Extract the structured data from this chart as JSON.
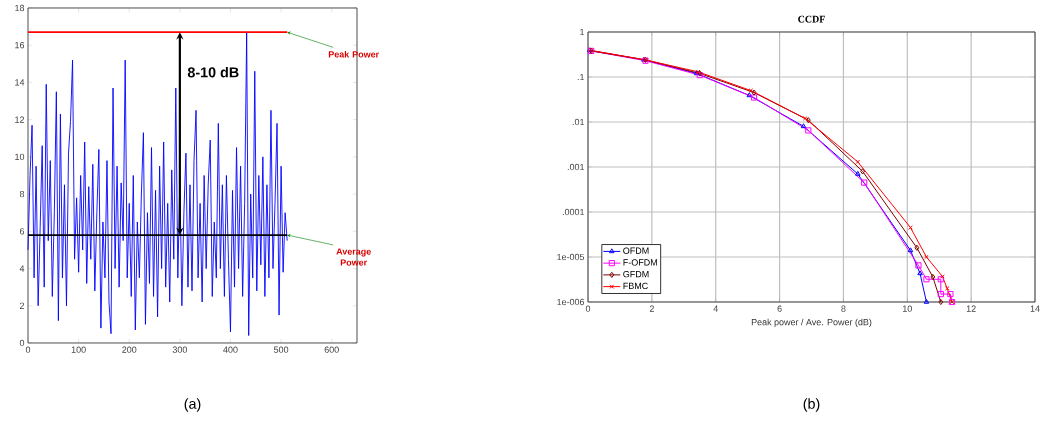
{
  "chart_data": [
    {
      "type": "line",
      "xlim": [
        0,
        650
      ],
      "ylim": [
        0,
        18
      ],
      "xticks": [
        0,
        100,
        200,
        300,
        400,
        500,
        600
      ],
      "yticks": [
        0,
        2,
        4,
        6,
        8,
        10,
        12,
        14,
        16,
        18
      ],
      "series": [
        {
          "color": "#0000ff",
          "x": [
            0,
            4,
            8,
            12,
            16,
            20,
            24,
            28,
            32,
            36,
            40,
            44,
            48,
            52,
            56,
            60,
            64,
            68,
            72,
            76,
            80,
            84,
            88,
            92,
            96,
            100,
            104,
            108,
            112,
            116,
            120,
            124,
            128,
            132,
            136,
            140,
            144,
            148,
            152,
            156,
            160,
            164,
            168,
            172,
            176,
            180,
            184,
            188,
            192,
            196,
            200,
            204,
            208,
            212,
            216,
            220,
            224,
            228,
            232,
            236,
            240,
            244,
            248,
            252,
            256,
            260,
            264,
            268,
            272,
            276,
            280,
            284,
            288,
            292,
            296,
            300,
            304,
            308,
            312,
            316,
            320,
            324,
            328,
            332,
            336,
            340,
            344,
            348,
            352,
            356,
            360,
            364,
            368,
            372,
            376,
            380,
            384,
            388,
            392,
            396,
            400,
            404,
            408,
            412,
            416,
            420,
            424,
            428,
            432,
            436,
            440,
            444,
            448,
            452,
            456,
            460,
            464,
            468,
            472,
            476,
            480,
            484,
            488,
            492,
            496,
            500,
            504,
            508,
            512
          ],
          "values": [
            5.0,
            9.0,
            11.7,
            3.5,
            9.5,
            2.0,
            6.2,
            10.6,
            3.0,
            13.9,
            5.5,
            9.8,
            2.5,
            7.0,
            13.5,
            1.2,
            12.3,
            3.5,
            8.5,
            2.0,
            10.2,
            11.9,
            15.2,
            4.5,
            7.8,
            3.8,
            9.0,
            5.0,
            10.8,
            3.2,
            8.4,
            4.5,
            9.6,
            2.8,
            7.0,
            10.4,
            0.8,
            6.5,
            3.5,
            9.8,
            2.2,
            0.5,
            13.7,
            4.0,
            9.5,
            3.0,
            8.6,
            5.5,
            15.2,
            3.5,
            7.5,
            2.5,
            9.0,
            0.7,
            6.5,
            3.5,
            8.0,
            11.3,
            1.0,
            7.0,
            3.2,
            10.5,
            2.5,
            8.2,
            1.4,
            9.5,
            4.0,
            10.8,
            3.0,
            7.5,
            2.2,
            9.3,
            4.5,
            13.7,
            3.5,
            8.8,
            2.0,
            7.0,
            10.2,
            3.0,
            8.5,
            2.8,
            9.8,
            12.5,
            3.5,
            7.5,
            2.2,
            9.0,
            4.0,
            8.5,
            10.9,
            2.5,
            6.5,
            3.5,
            11.8,
            4.0,
            8.5,
            2.5,
            9.0,
            4.5,
            0.6,
            8.2,
            3.0,
            10.5,
            4.0,
            9.5,
            2.5,
            7.5,
            16.7,
            0.4,
            8.0,
            3.5,
            14.6,
            2.8,
            9.0,
            4.2,
            10.0,
            2.5,
            8.5,
            3.5,
            12.5,
            4.0,
            7.5,
            11.8,
            1.5,
            9.5,
            3.8,
            7.0,
            5.5
          ]
        },
        {
          "name": "Peak Power",
          "color": "#ff0000",
          "x": [
            0,
            512
          ],
          "values": [
            16.7,
            16.7
          ]
        },
        {
          "name": "Average Power",
          "color": "#000000",
          "x": [
            0,
            512
          ],
          "values": [
            5.8,
            5.8
          ]
        }
      ],
      "annotations": [
        {
          "text": "8-10 dB",
          "x": 300,
          "y": 16.7
        },
        "(a)"
      ]
    },
    {
      "type": "line",
      "title": "CCDF",
      "xlabel": "Peak power / Ave. Power (dB)",
      "log": true,
      "grid": true,
      "legend": "bottom left",
      "xlim": [
        0,
        14
      ],
      "ylim": [
        1e-06,
        1
      ],
      "xticks": [
        0,
        2,
        4,
        6,
        8,
        10,
        12,
        14
      ],
      "yticks": [
        {
          "value": 1,
          "label": "1"
        },
        {
          "value": 0.1,
          "label": ".1"
        },
        {
          "value": 0.01,
          "label": ".01"
        },
        {
          "value": 0.001,
          "label": ".001"
        },
        {
          "value": 0.0001,
          "label": ".0001"
        },
        {
          "value": 1e-05,
          "label": "1e-005"
        },
        {
          "value": 1e-06,
          "label": "1e-006"
        }
      ],
      "series": [
        {
          "name": "OFDM",
          "color": "#0000ff",
          "marker": "triangle",
          "x": [
            0.05,
            1.75,
            3.4,
            5.05,
            6.75,
            8.45,
            10.1,
            10.4,
            10.6
          ],
          "values": [
            0.39,
            0.24,
            0.12,
            0.039,
            0.008,
            0.0007,
            1.4e-05,
            4.3e-06,
            1e-06
          ]
        },
        {
          "name": "F-OFDM",
          "color": "#ff00ff",
          "marker": "square",
          "x": [
            0.1,
            1.8,
            3.5,
            5.2,
            6.9,
            8.65,
            10.35,
            10.6,
            11.05,
            11.05,
            11.35,
            11.4
          ],
          "values": [
            0.38,
            0.23,
            0.11,
            0.035,
            0.0065,
            0.00045,
            6.5e-06,
            3.2e-06,
            3.2e-06,
            1.5e-06,
            1.5e-06,
            1e-06
          ]
        },
        {
          "name": "GFDM",
          "color": "#800000",
          "marker": "diamond",
          "x": [
            0.1,
            1.8,
            3.5,
            5.2,
            6.9,
            8.6,
            10.3,
            10.8,
            11.05
          ],
          "values": [
            0.38,
            0.24,
            0.12,
            0.045,
            0.011,
            0.0008,
            1.6e-05,
            3.6e-06,
            1e-06
          ]
        },
        {
          "name": "FBMC",
          "color": "#ff0000",
          "marker": "cross",
          "x": [
            0.1,
            1.8,
            3.45,
            5.1,
            6.8,
            8.45,
            10.1,
            10.6,
            11.1,
            11.25,
            11.4
          ],
          "values": [
            0.39,
            0.24,
            0.13,
            0.05,
            0.012,
            0.0013,
            4.5e-05,
            1e-05,
            3.7e-06,
            2e-06,
            1e-06
          ]
        }
      ],
      "annotations": [
        "(b)"
      ]
    }
  ]
}
